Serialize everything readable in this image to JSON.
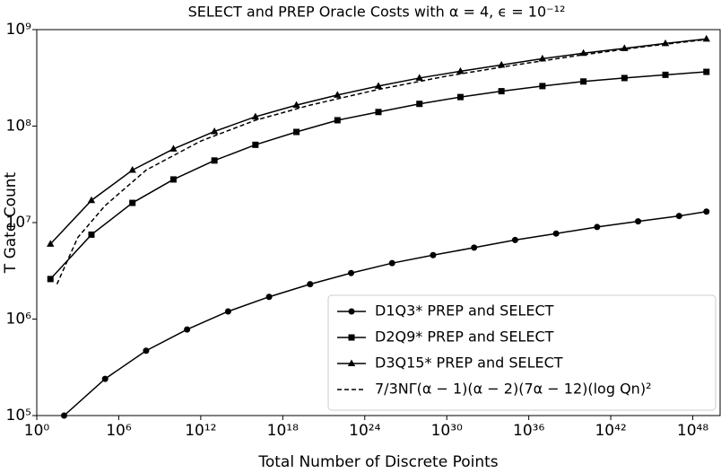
{
  "chart_data": {
    "type": "line",
    "title": "SELECT and PREP Oracle Costs with α = 4, ϵ = 10⁻¹²",
    "x_label": "Total Number of Discrete Points",
    "y_label": "T Gate Count",
    "log_x": true,
    "log_y": true,
    "legend": "lower right",
    "xlim": [
      1,
      1e+50
    ],
    "ylim": [
      100000.0,
      1000000000.0
    ],
    "xticks": [
      {
        "value": 1,
        "label": "10⁰"
      },
      {
        "value": 1000000.0,
        "label": "10⁶"
      },
      {
        "value": 1000000000000.0,
        "label": "10¹²"
      },
      {
        "value": 1e+18,
        "label": "10¹⁸"
      },
      {
        "value": 1e+24,
        "label": "10²⁴"
      },
      {
        "value": 1e+30,
        "label": "10³⁰"
      },
      {
        "value": 1e+36,
        "label": "10³⁶"
      },
      {
        "value": 1e+42,
        "label": "10⁴²"
      },
      {
        "value": 1e+48,
        "label": "10⁴⁸"
      }
    ],
    "yticks": [
      {
        "value": 100000.0,
        "label": "10⁵"
      },
      {
        "value": 1000000.0,
        "label": "10⁶"
      },
      {
        "value": 10000000.0,
        "label": "10⁷"
      },
      {
        "value": 100000000.0,
        "label": "10⁸"
      },
      {
        "value": 1000000000.0,
        "label": "10⁹"
      }
    ],
    "series": [
      {
        "name": "D1Q3* PREP and SELECT",
        "color": "#000000",
        "marker": "circle",
        "dashed": false,
        "x": [
          100.0,
          100000.0,
          100000000.0,
          100000000000.0,
          100000000000000.0,
          1e+17,
          1e+20,
          1e+23,
          1e+26,
          1e+29,
          1e+32,
          1e+35,
          1e+38,
          1e+41,
          1e+44,
          1e+47,
          1e+49
        ],
        "values": [
          100000.0,
          240000.0,
          470000.0,
          780000.0,
          1200000.0,
          1700000.0,
          2300000.0,
          3000000.0,
          3800000.0,
          4600000.0,
          5500000.0,
          6600000.0,
          7700000.0,
          9000000.0,
          10300000.0,
          11700000.0,
          13000000.0
        ]
      },
      {
        "name": "D2Q9* PREP and SELECT",
        "color": "#000000",
        "marker": "square",
        "dashed": false,
        "x": [
          10.0,
          10000.0,
          10000000.0,
          10000000000.0,
          10000000000000.0,
          1e+16,
          1e+19,
          1e+22,
          1e+25,
          1e+28,
          1e+31,
          1e+34,
          1e+37,
          1e+40,
          1e+43,
          1e+46,
          1e+49
        ],
        "values": [
          2600000.0,
          7500000.0,
          16000000.0,
          28000000.0,
          44000000.0,
          64000000.0,
          87000000.0,
          115000000.0,
          140000000.0,
          170000000.0,
          200000000.0,
          230000000.0,
          260000000.0,
          290000000.0,
          315000000.0,
          340000000.0,
          365000000.0
        ]
      },
      {
        "name": "D3Q15* PREP and SELECT",
        "color": "#000000",
        "marker": "triangle",
        "dashed": false,
        "x": [
          10.0,
          10000.0,
          10000000.0,
          10000000000.0,
          10000000000000.0,
          1e+16,
          1e+19,
          1e+22,
          1e+25,
          1e+28,
          1e+31,
          1e+34,
          1e+37,
          1e+40,
          1e+43,
          1e+46,
          1e+49
        ],
        "values": [
          6000000.0,
          17000000.0,
          35000000.0,
          58000000.0,
          88000000.0,
          125000000.0,
          165000000.0,
          210000000.0,
          260000000.0,
          315000000.0,
          370000000.0,
          430000000.0,
          500000000.0,
          570000000.0,
          640000000.0,
          720000000.0,
          800000000.0
        ]
      },
      {
        "name": "7/3NΓ(α − 1)(α − 2)(7α − 12)(log Qn)²",
        "color": "#000000",
        "marker": "none",
        "dashed": true,
        "x": [
          30.0,
          1000.0,
          100000.0,
          100000000.0,
          1000000000000.0,
          1e+16,
          1e+20,
          1e+25,
          1e+30,
          1e+35,
          1e+40,
          1e+45,
          1e+49
        ],
        "values": [
          2300000.0,
          7000000.0,
          15000000.0,
          35000000.0,
          70000000.0,
          115000000.0,
          165000000.0,
          240000000.0,
          330000000.0,
          430000000.0,
          550000000.0,
          680000000.0,
          790000000.0
        ]
      }
    ]
  }
}
